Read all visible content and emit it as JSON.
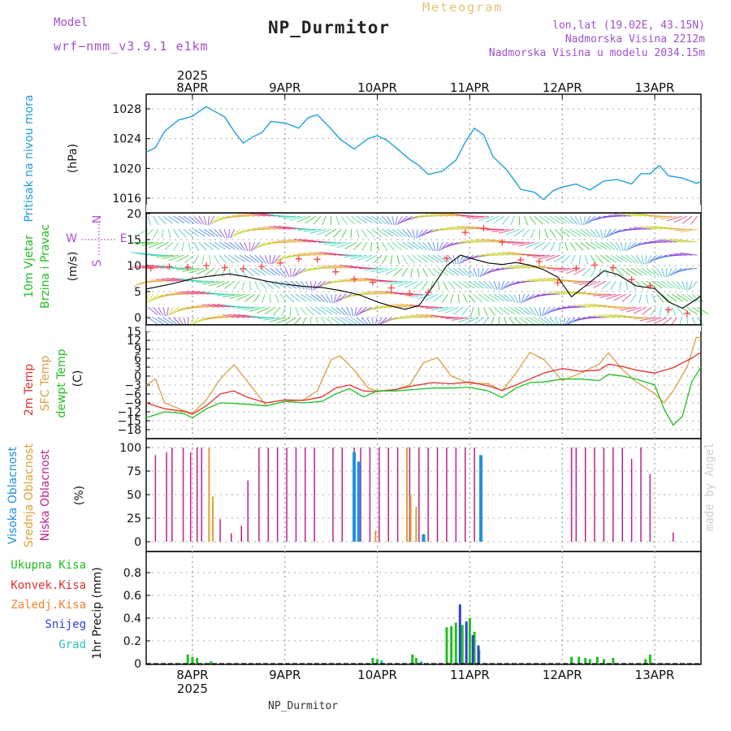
{
  "header": {
    "title": "NP_Durmitor",
    "meteogram": "Meteogram",
    "model_label": "Model",
    "model_name": "wrf−nmm_v3.9.1  e1km",
    "lonlat": "lon,lat (19.02E, 43.15N)",
    "altitude": "Nadmorska Visina 2212m",
    "model_altitude": "Nadmorska Visina u modelu 2034.15m"
  },
  "footer": {
    "station": "NP_Durmitor",
    "credit": "made by Angel"
  },
  "colors": {
    "pressure": "#1ea0e0",
    "temp2m": "#e03030",
    "sfc": "#d8a040",
    "dewpt": "#20c020",
    "wind_speed": "#000000",
    "gust": "#ff4040",
    "low_cloud": "#c0208a",
    "mid_cloud": "#e0a030",
    "high_cloud": "#1e90e0",
    "total_precip": "#20c020",
    "conv": "#e03030",
    "frz": "#f08030",
    "snow": "#3040d0",
    "hail": "#30c0c0",
    "legend_purple": "#b050d0"
  },
  "chart_data": [
    {
      "type": "line",
      "panel": "pressure",
      "ylabel_lines": [
        "Pritisak na nivou mora",
        "(hPa)"
      ],
      "ylim": [
        1015,
        1029
      ],
      "yticks": [
        1016,
        1020,
        1024,
        1028
      ],
      "grid": true,
      "x_top_year": "2025",
      "x_dates": [
        "8APR",
        "9APR",
        "10APR",
        "11APR",
        "12APR",
        "13APR"
      ],
      "x_range_days": [
        7.5,
        13.5
      ],
      "series": [
        {
          "key": "pressure",
          "x": [
            7.5,
            7.6,
            7.7,
            7.85,
            8.0,
            8.1,
            8.15,
            8.25,
            8.35,
            8.45,
            8.55,
            8.65,
            8.75,
            8.85,
            9.0,
            9.15,
            9.25,
            9.35,
            9.5,
            9.6,
            9.75,
            9.9,
            10.0,
            10.1,
            10.2,
            10.35,
            10.45,
            10.55,
            10.7,
            10.85,
            10.95,
            11.05,
            11.15,
            11.25,
            11.4,
            11.55,
            11.7,
            11.8,
            11.9,
            12.0,
            12.15,
            12.3,
            12.45,
            12.6,
            12.75,
            12.85,
            12.95,
            13.05,
            13.15,
            13.3,
            13.45,
            13.5
          ],
          "y": [
            1022.2,
            1022.8,
            1025.0,
            1026.5,
            1027.0,
            1027.9,
            1028.3,
            1027.6,
            1026.9,
            1025.0,
            1023.4,
            1024.2,
            1024.8,
            1026.3,
            1026.1,
            1025.4,
            1026.8,
            1027.2,
            1025.3,
            1023.9,
            1022.6,
            1024.0,
            1024.4,
            1023.8,
            1022.8,
            1021.2,
            1020.4,
            1019.2,
            1019.6,
            1021.1,
            1023.5,
            1025.4,
            1024.5,
            1021.6,
            1019.8,
            1017.2,
            1016.8,
            1015.8,
            1017.0,
            1017.5,
            1017.9,
            1017.1,
            1018.3,
            1018.5,
            1017.9,
            1019.3,
            1019.3,
            1020.4,
            1019.0,
            1018.7,
            1018.0,
            1018.2
          ]
        }
      ]
    },
    {
      "type": "line",
      "panel": "wind",
      "ylabel_lines": [
        "10m Vjetar",
        "Brzina i Pravac",
        "(m/s)"
      ],
      "direction_key": [
        "W",
        "E",
        "N",
        "S"
      ],
      "ylim": [
        -1,
        20
      ],
      "yticks": [
        0,
        5,
        10,
        15,
        20
      ],
      "grid": true,
      "series": [
        {
          "key": "wind_speed",
          "x": [
            7.5,
            7.7,
            7.85,
            8.0,
            8.2,
            8.4,
            8.6,
            8.8,
            9.0,
            9.2,
            9.4,
            9.6,
            9.8,
            10.0,
            10.15,
            10.3,
            10.45,
            10.6,
            10.75,
            10.9,
            11.05,
            11.2,
            11.35,
            11.5,
            11.65,
            11.8,
            11.95,
            12.1,
            12.3,
            12.45,
            12.6,
            12.8,
            13.0,
            13.15,
            13.3,
            13.45,
            13.5
          ],
          "y": [
            5.5,
            6.2,
            6.8,
            7.5,
            8.0,
            8.4,
            7.8,
            7.0,
            6.4,
            6.0,
            5.8,
            5.2,
            4.4,
            3.0,
            2.2,
            1.6,
            2.3,
            6.0,
            10.0,
            12.0,
            11.2,
            10.5,
            10.2,
            10.6,
            10.1,
            9.2,
            7.8,
            4.0,
            6.8,
            9.0,
            8.3,
            6.1,
            5.6,
            3.0,
            1.8,
            3.5,
            4.2
          ]
        },
        {
          "key": "gust",
          "x": [
            7.55,
            7.75,
            7.95,
            8.15,
            8.35,
            8.55,
            8.75,
            8.95,
            9.15,
            9.35,
            9.55,
            9.75,
            9.95,
            10.15,
            10.35,
            10.55,
            10.75,
            10.95,
            11.15,
            11.35,
            11.55,
            11.75,
            11.95,
            12.15,
            12.35,
            12.55,
            12.75,
            12.95,
            13.15,
            13.35
          ],
          "y": [
            9.5,
            9.8,
            9.7,
            10.0,
            9.6,
            9.4,
            9.8,
            10.5,
            11.3,
            11.2,
            8.8,
            7.4,
            6.8,
            5.7,
            4.6,
            4.8,
            11.4,
            16.4,
            17.2,
            14.5,
            11.1,
            10.8,
            6.7,
            9.5,
            10.1,
            9.6,
            7.3,
            6.1,
            1.5,
            0.8
          ]
        }
      ],
      "barbs": {
        "present": true
      }
    },
    {
      "type": "line",
      "panel": "temperature",
      "ylabel_lines": [
        "2m Temp",
        "SFC Temp",
        "dewpt Temp",
        "(C)"
      ],
      "ylim": [
        -20,
        16
      ],
      "yticks": [
        -18,
        -15,
        -12,
        -9,
        -6,
        -3,
        0,
        3,
        6,
        9,
        12,
        15
      ],
      "grid": true,
      "series": [
        {
          "key": "temp2m",
          "x": [
            7.5,
            7.7,
            7.9,
            8.0,
            8.15,
            8.3,
            8.45,
            8.6,
            8.8,
            9.0,
            9.2,
            9.4,
            9.55,
            9.7,
            9.85,
            10.0,
            10.2,
            10.4,
            10.6,
            10.8,
            11.0,
            11.2,
            11.35,
            11.5,
            11.65,
            11.8,
            12.0,
            12.2,
            12.4,
            12.5,
            12.65,
            12.8,
            13.0,
            13.2,
            13.4,
            13.5
          ],
          "y": [
            -9.0,
            -11.0,
            -11.8,
            -12.8,
            -10.0,
            -6.0,
            -5.0,
            -7.2,
            -9.0,
            -8.0,
            -8.2,
            -7.0,
            -4.0,
            -3.0,
            -5.0,
            -5.2,
            -4.5,
            -3.2,
            -2.2,
            -2.6,
            -2.0,
            -3.3,
            -4.8,
            -3.0,
            -1.0,
            1.0,
            2.5,
            1.6,
            2.0,
            4.0,
            3.2,
            2.0,
            1.0,
            2.8,
            6.0,
            8.0
          ]
        },
        {
          "key": "sfc",
          "x": [
            7.5,
            7.6,
            7.7,
            7.9,
            8.0,
            8.15,
            8.3,
            8.45,
            8.6,
            8.8,
            9.0,
            9.2,
            9.35,
            9.5,
            9.6,
            9.75,
            9.9,
            10.0,
            10.2,
            10.35,
            10.5,
            10.65,
            10.8,
            11.0,
            11.2,
            11.35,
            11.5,
            11.65,
            11.8,
            12.0,
            12.2,
            12.4,
            12.5,
            12.65,
            12.8,
            13.0,
            13.1,
            13.2,
            13.35,
            13.45,
            13.5
          ],
          "y": [
            -3.0,
            -1.0,
            -9.0,
            -11.5,
            -12.5,
            -8.0,
            -1.0,
            3.8,
            -2.0,
            -10.0,
            -8.5,
            -8.0,
            -5.0,
            5.5,
            6.8,
            2.0,
            -4.0,
            -5.0,
            -4.5,
            -3.0,
            4.5,
            6.2,
            0.0,
            -2.5,
            -2.5,
            -5.0,
            1.0,
            8.0,
            5.6,
            -1.5,
            1.0,
            4.0,
            7.8,
            2.2,
            -2.0,
            -5.8,
            -9.0,
            -5.0,
            3.0,
            13.0,
            12.8
          ]
        },
        {
          "key": "dewpt",
          "x": [
            7.5,
            7.7,
            7.9,
            8.0,
            8.15,
            8.3,
            8.45,
            8.6,
            8.8,
            9.0,
            9.2,
            9.4,
            9.55,
            9.7,
            9.85,
            10.0,
            10.2,
            10.4,
            10.6,
            10.8,
            11.0,
            11.2,
            11.35,
            11.5,
            11.65,
            11.8,
            12.0,
            12.2,
            12.4,
            12.5,
            12.65,
            12.8,
            13.0,
            13.1,
            13.2,
            13.3,
            13.4,
            13.5
          ],
          "y": [
            -14.0,
            -12.0,
            -12.5,
            -14.0,
            -11.0,
            -9.0,
            -9.2,
            -9.5,
            -10.0,
            -8.5,
            -9.0,
            -8.5,
            -6.0,
            -4.2,
            -7.0,
            -5.0,
            -5.0,
            -4.5,
            -4.0,
            -4.0,
            -3.8,
            -5.0,
            -7.2,
            -4.0,
            -2.2,
            -2.0,
            -1.0,
            -1.0,
            -1.5,
            0.6,
            0.0,
            -1.0,
            -3.0,
            -11.0,
            -16.5,
            -13.5,
            -2.0,
            3.0
          ]
        }
      ]
    },
    {
      "type": "bar",
      "panel": "cloud",
      "ylabel_lines": [
        "Visoka Oblacnost",
        "Srednja Oblacnost",
        "Niska Oblacnost",
        "(%)"
      ],
      "ylim": [
        0,
        100
      ],
      "yticks": [
        0,
        25,
        50,
        75,
        100
      ],
      "grid": true,
      "series": [
        {
          "key": "low_cloud",
          "x": [
            7.6,
            7.72,
            7.78,
            7.9,
            7.98,
            8.05,
            8.1,
            8.3,
            8.42,
            8.53,
            8.6,
            8.72,
            8.82,
            8.92,
            9.02,
            9.12,
            9.22,
            9.32,
            9.52,
            9.62,
            9.75,
            9.82,
            9.92,
            10.02,
            10.12,
            10.22,
            10.35,
            10.45,
            10.55,
            10.65,
            10.75,
            10.85,
            10.95,
            11.05,
            12.1,
            12.15,
            12.25,
            12.35,
            12.45,
            12.55,
            12.65,
            12.75,
            12.85,
            12.95,
            13.2
          ],
          "y": [
            92,
            95,
            100,
            100,
            95,
            100,
            100,
            24,
            9,
            17,
            65,
            100,
            100,
            100,
            100,
            100,
            100,
            100,
            100,
            100,
            100,
            100,
            100,
            100,
            100,
            100,
            100,
            100,
            100,
            100,
            100,
            100,
            100,
            100,
            100,
            100,
            100,
            100,
            100,
            100,
            100,
            88,
            100,
            72,
            10
          ]
        },
        {
          "key": "mid_cloud",
          "x": [
            8.18,
            8.22,
            9.98,
            10.32,
            10.36,
            10.42
          ],
          "y": [
            100,
            48,
            12,
            100,
            50,
            37
          ]
        },
        {
          "key": "high_cloud",
          "x": [
            9.75,
            9.8,
            10.5,
            11.12
          ],
          "y": [
            95,
            85,
            8,
            92
          ]
        }
      ]
    },
    {
      "type": "bar",
      "panel": "precip",
      "ylabel_lines": [
        "1hr Precip (mm)"
      ],
      "legend": [
        "Ukupna Kisa",
        "Konvek.Kisa",
        "Zaledj.Kisa",
        "Snijeg",
        "Grad"
      ],
      "ylim": [
        0,
        0.95
      ],
      "yticks": [
        0,
        0.2,
        0.4,
        0.6,
        0.8
      ],
      "grid": true,
      "x_bottom_year": "2025",
      "series": [
        {
          "key": "total_precip",
          "x": [
            7.95,
            8.0,
            8.05,
            8.2,
            9.95,
            10.0,
            10.38,
            10.42,
            10.75,
            10.8,
            10.85,
            10.92,
            11.0,
            11.05,
            11.1,
            12.1,
            12.18,
            12.25,
            12.3,
            12.38,
            12.45,
            12.55,
            12.9,
            12.95
          ],
          "y": [
            0.08,
            0.06,
            0.05,
            0.02,
            0.05,
            0.04,
            0.08,
            0.05,
            0.32,
            0.33,
            0.36,
            0.34,
            0.4,
            0.28,
            0.12,
            0.06,
            0.06,
            0.05,
            0.04,
            0.06,
            0.04,
            0.05,
            0.04,
            0.08
          ]
        },
        {
          "key": "snow",
          "x": [
            10.88,
            10.95,
            11.02,
            11.08
          ],
          "y": [
            0.52,
            0.37,
            0.25,
            0.16
          ]
        },
        {
          "key": "hail",
          "x": [
            10.02,
            10.45
          ],
          "y": [
            0.03,
            0.02
          ]
        }
      ]
    }
  ]
}
